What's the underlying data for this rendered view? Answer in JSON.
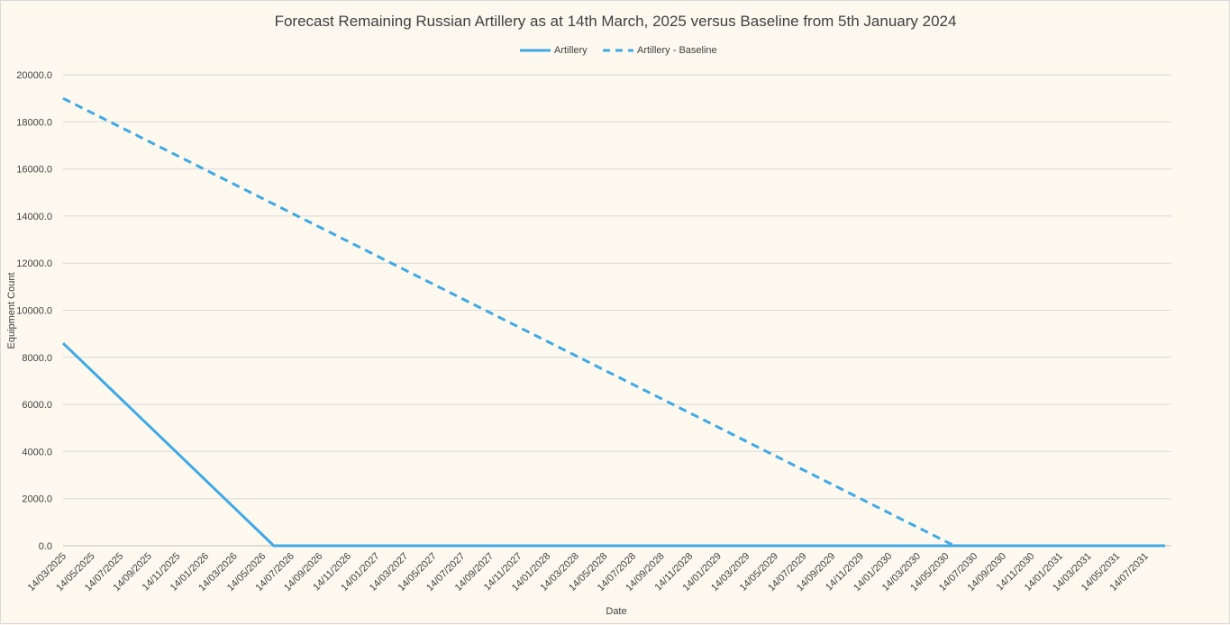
{
  "chart_data": {
    "type": "line",
    "title": "Forecast Remaining Russian Artillery as at 14th March, 2025 versus Baseline from 5th January 2024",
    "xlabel": "Date",
    "ylabel": "Equipment Count",
    "ylim": [
      0,
      20000
    ],
    "yticks": [
      "0.0",
      "2000.0",
      "4000.0",
      "6000.0",
      "8000.0",
      "10000.0",
      "12000.0",
      "14000.0",
      "16000.0",
      "18000.0",
      "20000.0"
    ],
    "categories": [
      "14/03/2025",
      "14/05/2025",
      "14/07/2025",
      "14/09/2025",
      "14/11/2025",
      "14/01/2026",
      "14/03/2026",
      "14/05/2026",
      "14/07/2026",
      "14/09/2026",
      "14/11/2026",
      "14/01/2027",
      "14/03/2027",
      "14/05/2027",
      "14/07/2027",
      "14/09/2027",
      "14/11/2027",
      "14/01/2028",
      "14/03/2028",
      "14/05/2028",
      "14/07/2028",
      "14/09/2028",
      "14/11/2028",
      "14/01/2029",
      "14/03/2029",
      "14/05/2029",
      "14/07/2029",
      "14/09/2029",
      "14/11/2029",
      "14/01/2030",
      "14/03/2030",
      "14/05/2030",
      "14/07/2030",
      "14/09/2030",
      "14/11/2030",
      "14/01/2031",
      "14/03/2031",
      "14/05/2031",
      "14/07/2031"
    ],
    "legend_position": "top",
    "grid": true,
    "series": [
      {
        "name": "Artillery",
        "style": "solid",
        "color": "#3fa9e6",
        "points": [
          [
            0,
            8600
          ],
          [
            7.4,
            0
          ],
          [
            38.7,
            0
          ]
        ]
      },
      {
        "name": "Artillery - Baseline",
        "style": "dashed",
        "color": "#3fa9e6",
        "points": [
          [
            0,
            19000
          ],
          [
            31.3,
            0
          ],
          [
            38.7,
            0
          ]
        ]
      }
    ]
  }
}
